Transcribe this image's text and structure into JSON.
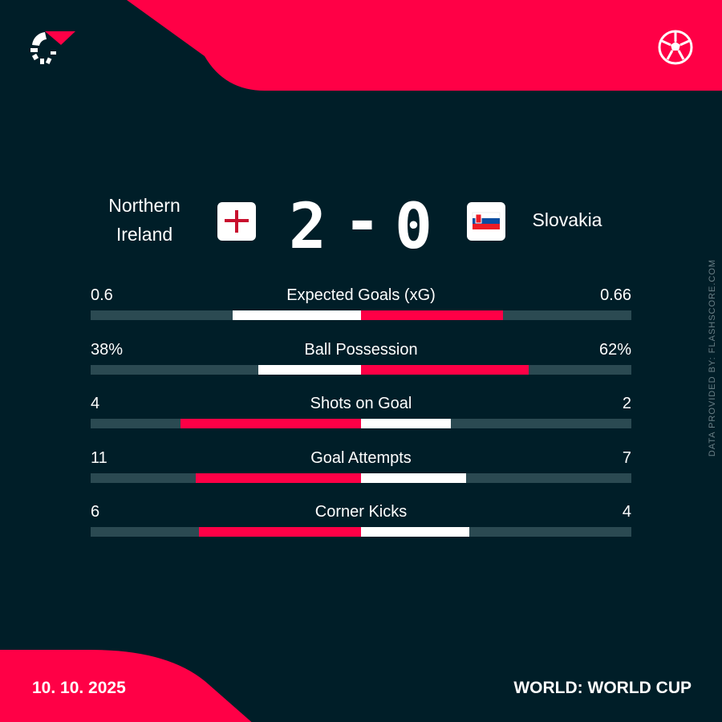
{
  "brand": {
    "logo_icon": "flashscore-logo",
    "sport_icon": "soccer-ball-icon",
    "accent": "#ff0046",
    "background": "#001e28",
    "track": "#2b4a52"
  },
  "match": {
    "home": "Northern Ireland",
    "home_line1": "Northern",
    "home_line2": "Ireland",
    "away": "Slovakia",
    "home_score": "2",
    "separator": "-",
    "away_score": "0",
    "home_flag": "northern-ireland-flag",
    "away_flag": "slovakia-flag"
  },
  "stats": [
    {
      "name": "Expected Goals (xG)",
      "home": "0.6",
      "away": "0.66",
      "home_share": 0.476,
      "away_share": 0.524
    },
    {
      "name": "Ball Possession",
      "home": "38%",
      "away": "62%",
      "home_share": 0.38,
      "away_share": 0.62
    },
    {
      "name": "Shots on Goal",
      "home": "4",
      "away": "2",
      "home_share": 0.667,
      "away_share": 0.333
    },
    {
      "name": "Goal Attempts",
      "home": "11",
      "away": "7",
      "home_share": 0.611,
      "away_share": 0.389
    },
    {
      "name": "Corner Kicks",
      "home": "6",
      "away": "4",
      "home_share": 0.6,
      "away_share": 0.4
    }
  ],
  "footer": {
    "date": "10. 10. 2025",
    "competition": "WORLD: WORLD CUP",
    "credit": "DATA PROVIDED BY: FLASHSCORE.COM"
  }
}
